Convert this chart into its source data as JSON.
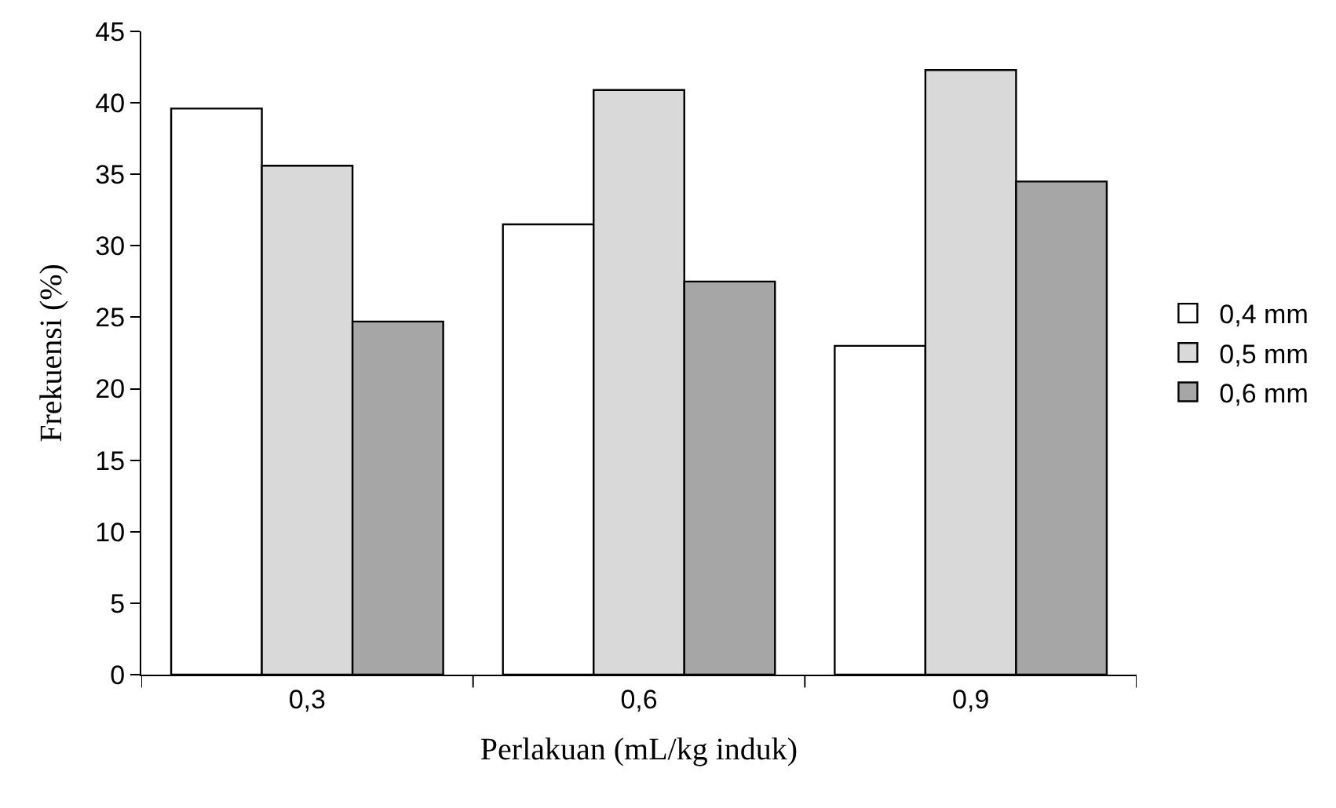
{
  "chart_data": {
    "type": "bar",
    "xlabel": "Perlakuan (mL/kg induk)",
    "ylabel": "Frekuensi (%)",
    "categories": [
      "0,3",
      "0,6",
      "0,9"
    ],
    "series": [
      {
        "name": "0,4 mm",
        "color": "#ffffff",
        "values": [
          39.6,
          31.5,
          23.0
        ]
      },
      {
        "name": "0,5 mm",
        "color": "#d9d9d9",
        "values": [
          35.6,
          40.9,
          42.3
        ]
      },
      {
        "name": "0,6 mm",
        "color": "#a6a6a6",
        "values": [
          24.7,
          27.5,
          34.5
        ]
      }
    ],
    "ylim": [
      0,
      45
    ],
    "yticks": [
      0,
      5,
      10,
      15,
      20,
      25,
      30,
      35,
      40,
      45
    ],
    "legend": "right"
  }
}
